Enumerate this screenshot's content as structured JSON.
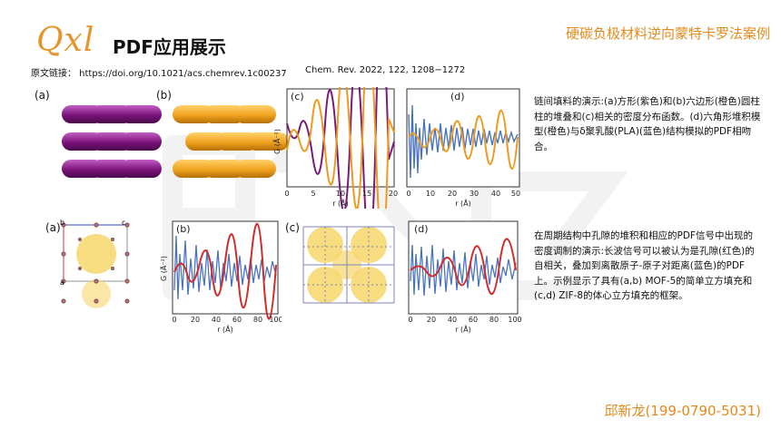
{
  "header": {
    "logo": "Qxl",
    "title": "PDF应用展示",
    "topright": "硬碳负极材料逆向蒙特卡罗法案例",
    "ref_label": "原文链接： https://doi.org/10.1021/acs.chemrev.1c00237",
    "ref_journal": "Chem. Rev. 2022, 122, 1208−1272"
  },
  "top_row": {
    "labels": [
      "(a)",
      "(b)",
      "(c)",
      "(d)"
    ],
    "c_xlabel": "r (Å)",
    "c_ylabel": "G (Å⁻²)",
    "c_ticks": [
      "0",
      "5",
      "10",
      "15",
      "20"
    ],
    "d_xlabel": "r (Å)",
    "d_ticks": [
      "0",
      "10",
      "20",
      "30",
      "40",
      "50"
    ],
    "colors": {
      "purple": "#7b1a7b",
      "orange": "#ee9a1f",
      "blue": "#4a74c0"
    }
  },
  "bottom_row": {
    "labels": [
      "(a)",
      "(b)",
      "(c)",
      "(d)"
    ],
    "axis_letters": {
      "b": "b",
      "c": "c",
      "a": "a"
    },
    "xlabel": "r (Å)",
    "ylabel": "G (Å⁻²)",
    "ticks": [
      "0",
      "20",
      "40",
      "60",
      "80",
      "100"
    ],
    "colors": {
      "red": "#d22b2b",
      "blue": "#4a74c0",
      "yellow": "#f6d66a"
    }
  },
  "descriptions": {
    "top": "链间填料的演示:(a)方形(紫色)和(b)六边形(橙色)圆柱柱的堆叠和(c)相关的密度分布函数。(d)六角形堆积模型(橙色)与δ聚乳酸(PLA)(蓝色)结构模拟的PDF相吻合。",
    "bottom": "在周期结构中孔隙的堆积和相应的PDF信号中出现的密度调制的演示:长波信号可以被认为是孔隙(红色)的自相关，叠加到离散原子-原子对距离(蓝色)的PDF上。示例显示了具有(a,b) MOF-5的简单立方填充和(c,d) ZIF-8的体心立方填充的框架。"
  },
  "contact": "邱新龙(199-0790-5031)"
}
